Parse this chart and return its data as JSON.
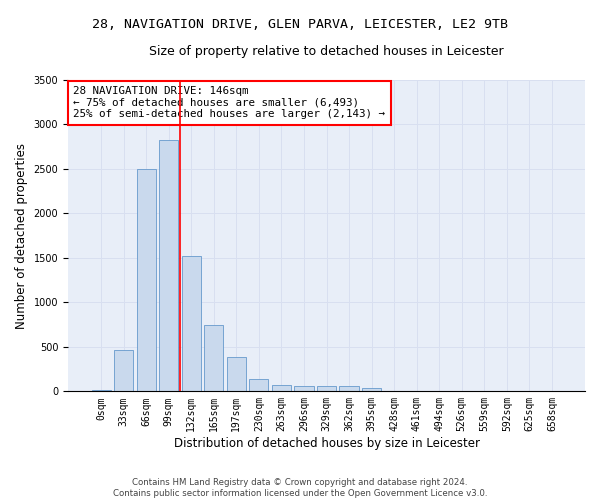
{
  "title_line1": "28, NAVIGATION DRIVE, GLEN PARVA, LEICESTER, LE2 9TB",
  "title_line2": "Size of property relative to detached houses in Leicester",
  "xlabel": "Distribution of detached houses by size in Leicester",
  "ylabel": "Number of detached properties",
  "bar_color": "#c9d9ed",
  "bar_edge_color": "#6699cc",
  "categories": [
    "0sqm",
    "33sqm",
    "66sqm",
    "99sqm",
    "132sqm",
    "165sqm",
    "197sqm",
    "230sqm",
    "263sqm",
    "296sqm",
    "329sqm",
    "362sqm",
    "395sqm",
    "428sqm",
    "461sqm",
    "494sqm",
    "526sqm",
    "559sqm",
    "592sqm",
    "625sqm",
    "658sqm"
  ],
  "values": [
    20,
    470,
    2500,
    2820,
    1520,
    750,
    390,
    135,
    75,
    55,
    55,
    55,
    35,
    0,
    0,
    0,
    0,
    0,
    0,
    0,
    0
  ],
  "annotation_text": "28 NAVIGATION DRIVE: 146sqm\n← 75% of detached houses are smaller (6,493)\n25% of semi-detached houses are larger (2,143) →",
  "annotation_box_color": "white",
  "annotation_box_edge_color": "red",
  "vline_color": "red",
  "vline_pos": 3.5,
  "ylim": [
    0,
    3500
  ],
  "yticks": [
    0,
    500,
    1000,
    1500,
    2000,
    2500,
    3000,
    3500
  ],
  "grid_color": "#d8dff0",
  "background_color": "#e8eef8",
  "footer_line1": "Contains HM Land Registry data © Crown copyright and database right 2024.",
  "footer_line2": "Contains public sector information licensed under the Open Government Licence v3.0.",
  "title_fontsize": 9.5,
  "subtitle_fontsize": 9,
  "axis_label_fontsize": 8.5,
  "tick_fontsize": 7,
  "annotation_fontsize": 7.8
}
